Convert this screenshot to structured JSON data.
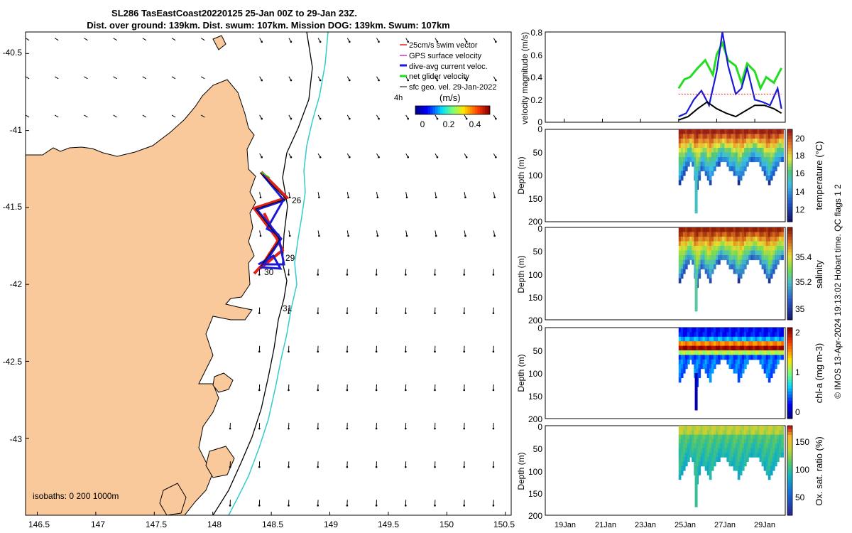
{
  "title": {
    "line1": "SL286 TasEastCoast20220125 25-Jan 00Z to 29-Jan 23Z.",
    "line2": "Dist. over ground: 139km. Dist. swum: 107km. Mission DOG: 139km. Swum: 107km"
  },
  "colors": {
    "land": "#f9c89b",
    "sea": "#ffffff",
    "isobath_200": "#000000",
    "isobath_1000": "#33cccc",
    "swim": "#e0201a",
    "gps": "#cc33cc",
    "dac": "#1a1ad6",
    "net": "#22dd22",
    "geo": "#000000"
  },
  "map": {
    "lon_range": [
      146.4,
      150.55
    ],
    "lat_range": [
      -43.5,
      -40.36
    ],
    "lon_ticks": [
      "146.5",
      "147",
      "147.5",
      "148",
      "148.5",
      "149",
      "149.5",
      "150",
      "150.5"
    ],
    "lat_ticks": [
      "-40.5",
      "-41",
      "-41.5",
      "-42",
      "-42.5",
      "-43"
    ],
    "legend": [
      {
        "label": "25cm/s swim vector",
        "key": "swim"
      },
      {
        "label": "GPS surface velocity",
        "key": "gps"
      },
      {
        "label": "dive-avg current veloc.",
        "key": "dac"
      },
      {
        "label": "net glider velocity",
        "key": "net"
      },
      {
        "label": "sfc geo. vel. 29-Jan-2022",
        "key": "geo"
      }
    ],
    "scale_label": "4h",
    "colorbar": {
      "title": "(m/s)",
      "ticks": [
        "0",
        "0.2",
        "0.4"
      ],
      "range": [
        0,
        0.5
      ]
    },
    "isobath_text": "isobaths: 0   200  1000m",
    "day_labels": [
      {
        "text": "26",
        "lon": 148.62,
        "lat": -41.51
      },
      {
        "text": "29",
        "lon": 148.59,
        "lat": -41.82
      },
      {
        "text": "30",
        "lon": 148.41,
        "lat": -41.91
      },
      {
        "text": "31",
        "lon": 148.58,
        "lat": -42.15
      }
    ]
  },
  "chart_data": [
    {
      "type": "line",
      "ylabel": "velocity magnitude (m/s)",
      "ylim": [
        0,
        0.8
      ],
      "yticks": [
        "0",
        "0.2",
        "0.4",
        "0.6",
        "0.8"
      ],
      "xlim_day": [
        18,
        30.6
      ],
      "series": [
        {
          "name": "net glider velocity",
          "x": [
            25,
            25.3,
            25.6,
            26,
            26.4,
            26.8,
            27,
            27.3,
            27.6,
            28,
            28.3,
            28.6,
            29,
            29.3,
            29.6,
            30,
            30.4
          ],
          "values": [
            0.3,
            0.38,
            0.4,
            0.48,
            0.55,
            0.42,
            0.6,
            0.7,
            0.55,
            0.5,
            0.35,
            0.52,
            0.45,
            0.3,
            0.4,
            0.35,
            0.48
          ]
        },
        {
          "name": "dive-avg current veloc.",
          "x": [
            25,
            25.4,
            25.8,
            26.2,
            26.6,
            27,
            27.3,
            27.6,
            28,
            28.3,
            28.6,
            29,
            29.4,
            29.8,
            30.2,
            30.4
          ],
          "values": [
            0.05,
            0.08,
            0.2,
            0.28,
            0.15,
            0.45,
            0.8,
            0.5,
            0.25,
            0.3,
            0.48,
            0.2,
            0.18,
            0.15,
            0.3,
            0.12
          ]
        },
        {
          "name": "sfc geo. vel.",
          "x": [
            25,
            25.5,
            26,
            26.5,
            27,
            27.5,
            28,
            28.5,
            29,
            29.5,
            30,
            30.4
          ],
          "values": [
            0.02,
            0.05,
            0.12,
            0.18,
            0.12,
            0.08,
            0.05,
            0.1,
            0.15,
            0.15,
            0.12,
            0.08
          ]
        },
        {
          "name": "25cm/s swim vector",
          "x": [
            25,
            30.4
          ],
          "values": [
            0.25,
            0.25
          ]
        }
      ]
    },
    {
      "type": "heatmap",
      "variable": "temperature",
      "clabel": "temperature (°C)",
      "clim": [
        11,
        20.3
      ],
      "cticks": [
        "12",
        "14",
        "16",
        "18",
        "20"
      ],
      "ylabel": "Depth (m)",
      "ylim": [
        0,
        200
      ],
      "yticks": [
        "0",
        "50",
        "100",
        "150",
        "200"
      ],
      "surface_value": 20,
      "deep_value": 13,
      "colormap": "thermal"
    },
    {
      "type": "heatmap",
      "variable": "salinity",
      "clabel": "salinity",
      "clim": [
        34.95,
        35.5
      ],
      "cticks": [
        "35",
        "35.2",
        "35.4"
      ],
      "ylabel": "Depth (m)",
      "ylim": [
        0,
        200
      ],
      "yticks": [
        "0",
        "50",
        "100",
        "150",
        "200"
      ],
      "surface_value": 35.45,
      "deep_value": 35.15,
      "colormap": "haline"
    },
    {
      "type": "heatmap",
      "variable": "chl-a",
      "clabel": "chl-a (mg m-3)",
      "clim": [
        0,
        2
      ],
      "cticks": [
        "0",
        "1",
        "2"
      ],
      "ylabel": "Depth (m)",
      "ylim": [
        0,
        200
      ],
      "yticks": [
        "0",
        "50",
        "100",
        "150",
        "200"
      ],
      "surface_value": 0.3,
      "deep_value": 0.8,
      "colormap": "jet"
    },
    {
      "type": "heatmap",
      "variable": "oxygen",
      "clabel": "Ox. sat. ratio (%)",
      "clim": [
        25,
        175
      ],
      "cticks": [
        "50",
        "100",
        "150"
      ],
      "ylabel": "Depth (m)",
      "ylim": [
        0,
        200
      ],
      "yticks": [
        "0",
        "50",
        "100",
        "150",
        "200"
      ],
      "surface_value": 130,
      "deep_value": 108,
      "colormap": "parula"
    }
  ],
  "time_axis": {
    "xticks": [
      "19Jan",
      "21Jan",
      "23Jan",
      "25Jan",
      "27Jan",
      "29Jan"
    ],
    "tick_days": [
      19,
      21,
      23,
      25,
      27,
      29
    ]
  },
  "footer": "© IMOS 13-Apr-2024 19:13:02 Hobart time. QC flags 1  2"
}
